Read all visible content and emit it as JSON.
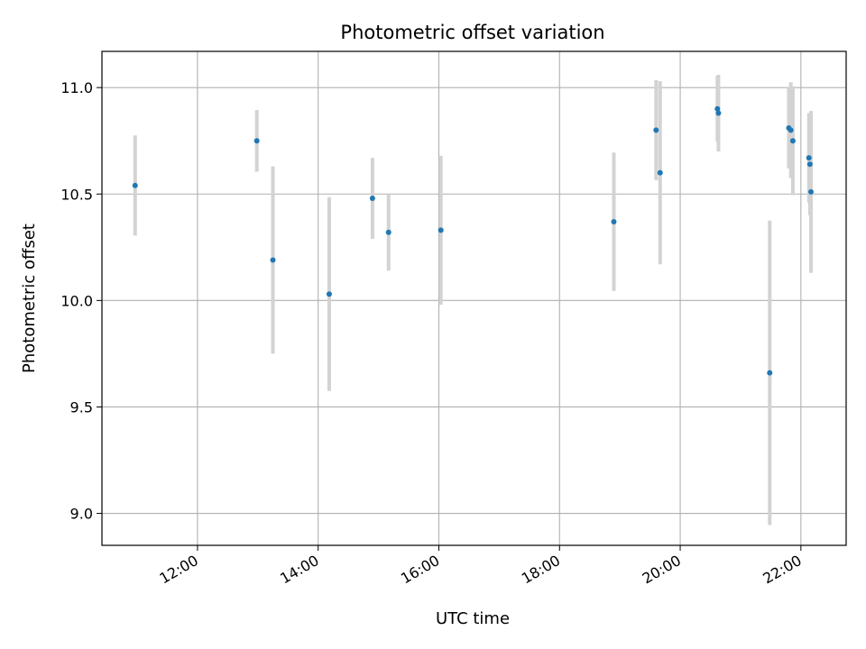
{
  "chart_data": {
    "type": "scatter",
    "title": "Photometric offset variation",
    "xlabel": "UTC time",
    "ylabel": "Photometric offset",
    "x_ticks": [
      "12:00",
      "14:00",
      "16:00",
      "18:00",
      "20:00",
      "22:00"
    ],
    "x_tick_hours": [
      12,
      14,
      16,
      18,
      20,
      22
    ],
    "y_ticks": [
      "9.0",
      "9.5",
      "10.0",
      "10.5",
      "11.0"
    ],
    "y_tick_values": [
      9.0,
      9.5,
      10.0,
      10.5,
      11.0
    ],
    "xlim": [
      "10:25",
      "22:45"
    ],
    "ylim": [
      8.85,
      11.17
    ],
    "grid": true,
    "colors": {
      "point": "#1f77b4",
      "errorbar": "#d3d3d3",
      "grid": "#b0b0b0"
    },
    "series": [
      {
        "points": [
          {
            "t": "10:58",
            "y": 10.54,
            "err": 0.235
          },
          {
            "t": "12:59",
            "y": 10.75,
            "err": 0.145
          },
          {
            "t": "13:15",
            "y": 10.19,
            "err": 0.44
          },
          {
            "t": "14:11",
            "y": 10.03,
            "err": 0.455
          },
          {
            "t": "14:54",
            "y": 10.48,
            "err": 0.19
          },
          {
            "t": "15:10",
            "y": 10.32,
            "err": 0.18
          },
          {
            "t": "16:02",
            "y": 10.33,
            "err": 0.35
          },
          {
            "t": "18:54",
            "y": 10.37,
            "err": 0.325
          },
          {
            "t": "19:36",
            "y": 10.8,
            "err": 0.235
          },
          {
            "t": "19:40",
            "y": 10.6,
            "err": 0.43
          },
          {
            "t": "20:37",
            "y": 10.9,
            "err": 0.155
          },
          {
            "t": "20:38",
            "y": 10.88,
            "err": 0.18
          },
          {
            "t": "21:29",
            "y": 9.66,
            "err": 0.715
          },
          {
            "t": "21:48",
            "y": 10.81,
            "err": 0.19
          },
          {
            "t": "21:50",
            "y": 10.8,
            "err": 0.225
          },
          {
            "t": "21:52",
            "y": 10.75,
            "err": 0.255
          },
          {
            "t": "22:08",
            "y": 10.67,
            "err": 0.21
          },
          {
            "t": "22:09",
            "y": 10.64,
            "err": 0.24
          },
          {
            "t": "22:10",
            "y": 10.51,
            "err": 0.38
          }
        ]
      }
    ]
  }
}
